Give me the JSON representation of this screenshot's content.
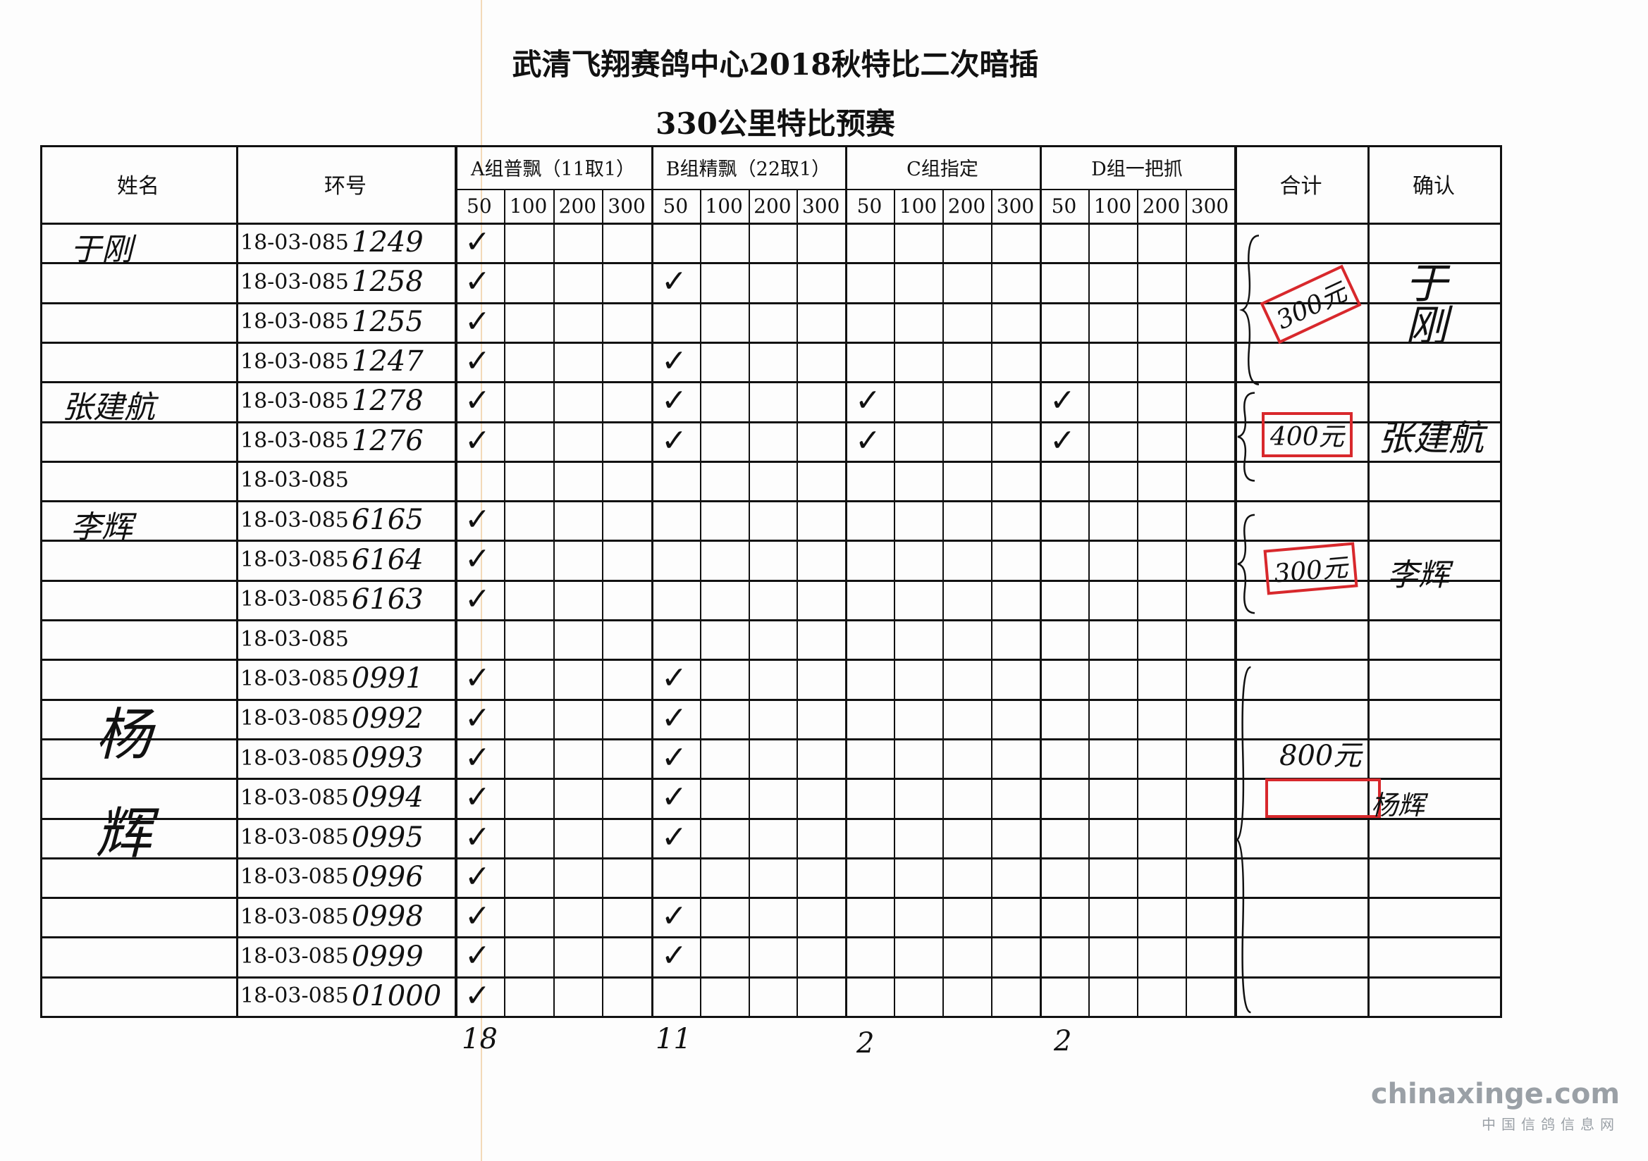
{
  "title": "武清飞翔赛鸽中心2018秋特比二次暗插",
  "subtitle": "330公里特比预赛",
  "headers": {
    "name": "姓名",
    "ring": "环号",
    "groups": [
      "A组普飘（11取1）",
      "B组精飘（22取1）",
      "C组指定",
      "D组一把抓"
    ],
    "tiers": [
      "50",
      "100",
      "200",
      "300"
    ],
    "total": "合计",
    "confirm": "确认"
  },
  "ring_prefix": "18-03-085",
  "check_mark": "✓",
  "rows": [
    {
      "suffix": "1249",
      "checks": [
        "A"
      ]
    },
    {
      "suffix": "1258",
      "checks": [
        "A",
        "B"
      ]
    },
    {
      "suffix": "1255",
      "checks": [
        "A"
      ]
    },
    {
      "suffix": "1247",
      "checks": [
        "A",
        "B"
      ]
    },
    {
      "suffix": "1278",
      "checks": [
        "A",
        "B",
        "C",
        "D"
      ]
    },
    {
      "suffix": "1276",
      "checks": [
        "A",
        "B",
        "C",
        "D"
      ]
    },
    {
      "suffix": "",
      "checks": []
    },
    {
      "suffix": "6165",
      "checks": [
        "A"
      ]
    },
    {
      "suffix": "6164",
      "checks": [
        "A"
      ]
    },
    {
      "suffix": "6163",
      "checks": [
        "A"
      ]
    },
    {
      "suffix": "",
      "checks": []
    },
    {
      "suffix": "0991",
      "checks": [
        "A",
        "B"
      ]
    },
    {
      "suffix": "0992",
      "checks": [
        "A",
        "B"
      ]
    },
    {
      "suffix": "0993",
      "checks": [
        "A",
        "B"
      ]
    },
    {
      "suffix": "0994",
      "checks": [
        "A",
        "B"
      ]
    },
    {
      "suffix": "0995",
      "checks": [
        "A",
        "B"
      ]
    },
    {
      "suffix": "0996",
      "checks": [
        "A"
      ]
    },
    {
      "suffix": "0998",
      "checks": [
        "A",
        "B"
      ]
    },
    {
      "suffix": "0999",
      "checks": [
        "A",
        "B"
      ]
    },
    {
      "suffix": "01000",
      "checks": [
        "A"
      ]
    }
  ],
  "players": [
    {
      "name": "于刚",
      "total": "300元",
      "confirm": "于刚"
    },
    {
      "name": "张建航",
      "total": "400元",
      "confirm": "张建航"
    },
    {
      "name": "李辉",
      "total": "300元",
      "confirm": "李辉"
    },
    {
      "name": "杨辉",
      "total": "800元",
      "confirm": "杨辉"
    }
  ],
  "column_totals": [
    "18",
    "11",
    "2",
    "2"
  ],
  "watermark": {
    "site": "chinaxinge.com",
    "name": "中国信鸽信息网"
  },
  "colors": {
    "stamp": "#d8282c",
    "ink": "#111111"
  }
}
